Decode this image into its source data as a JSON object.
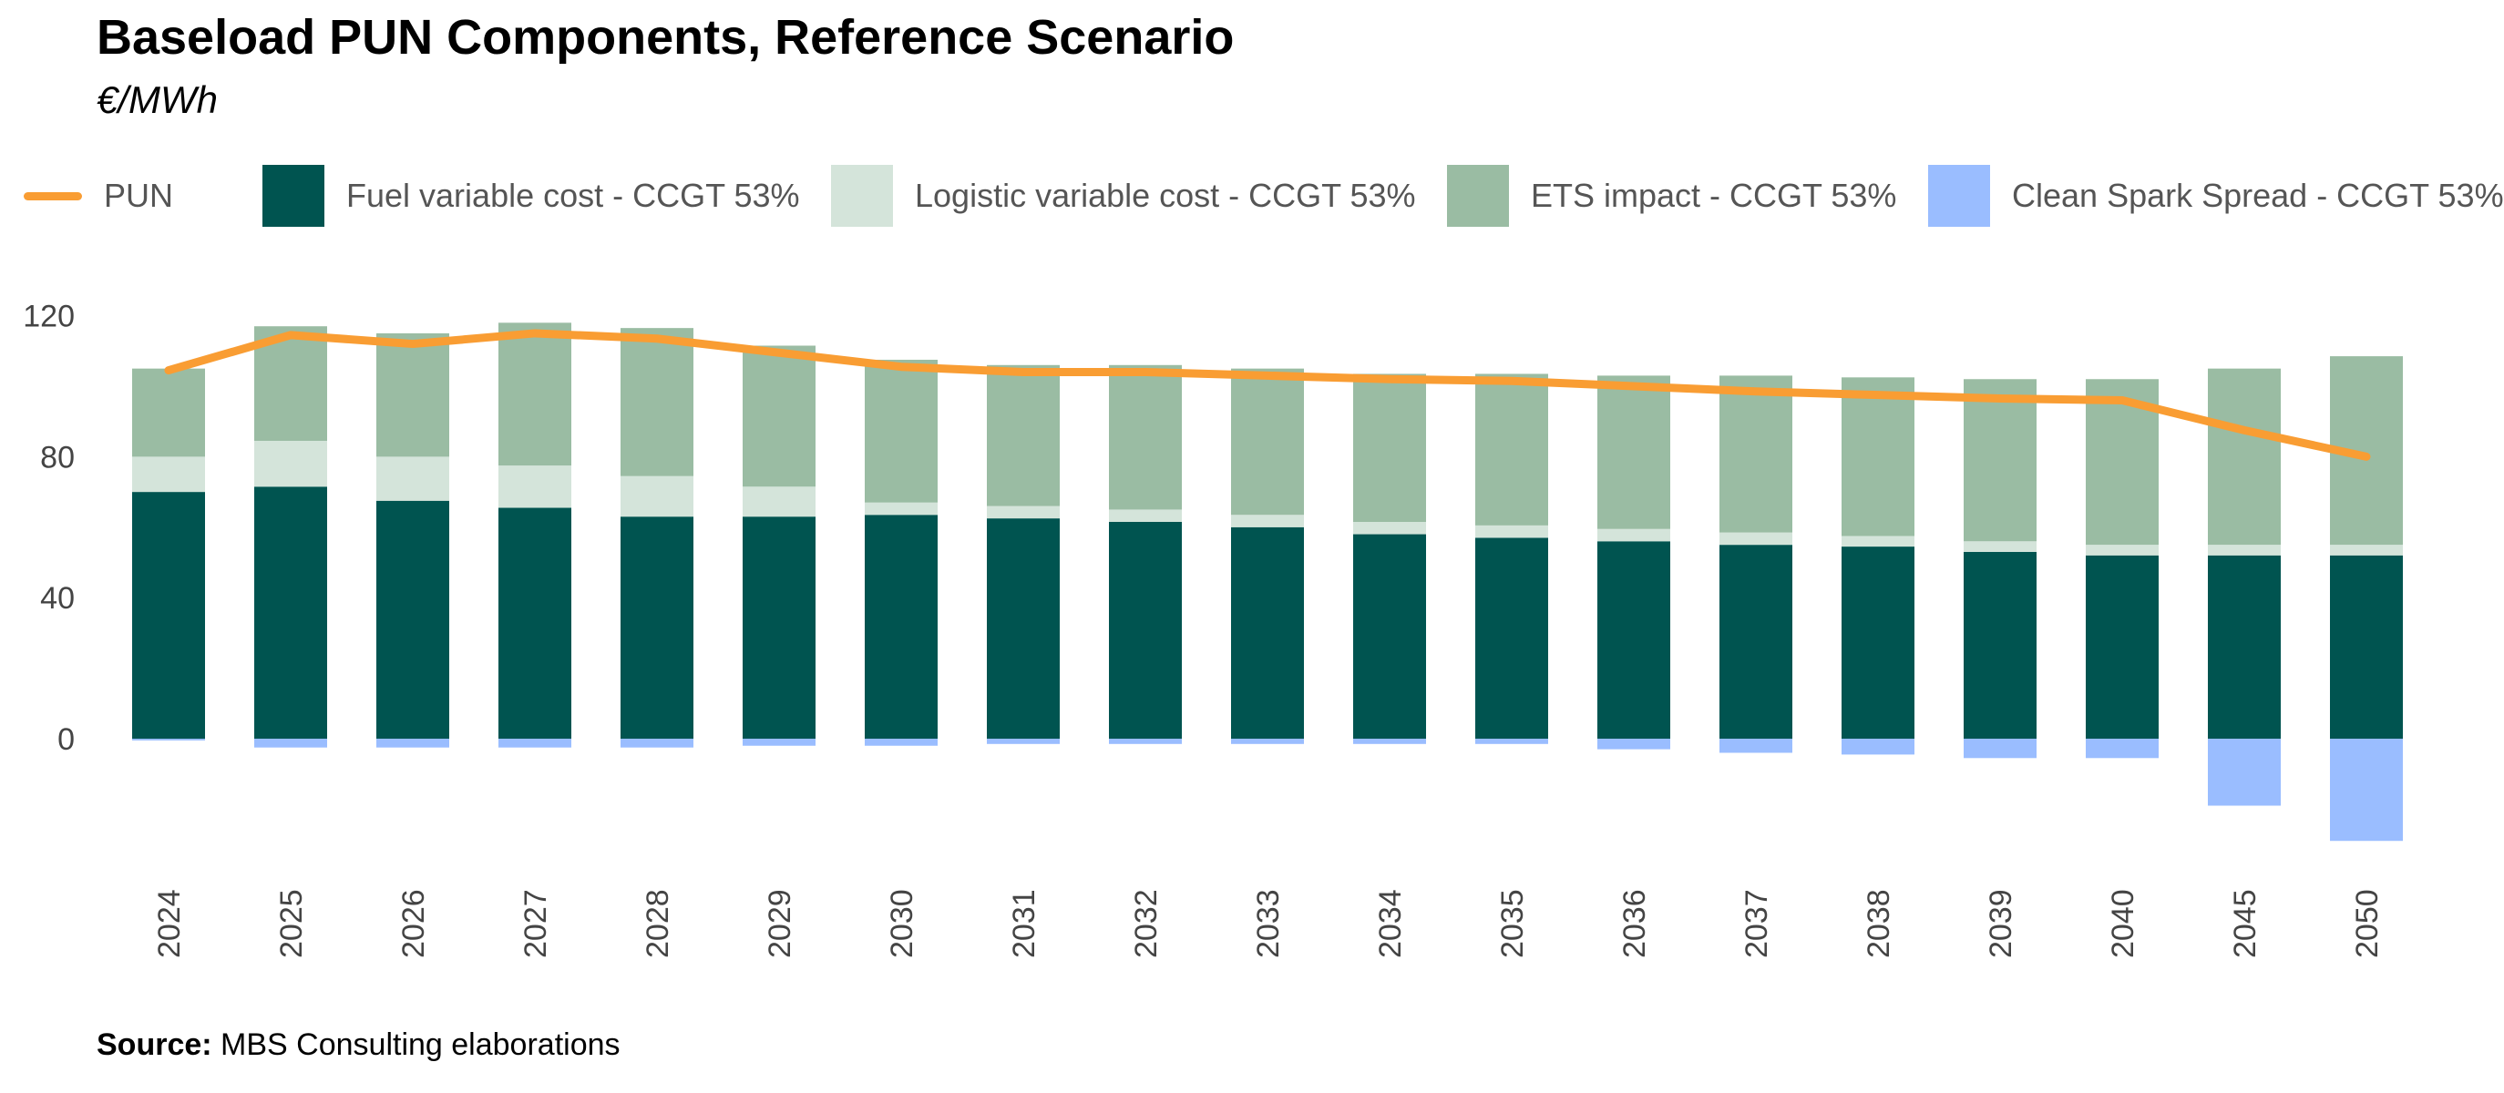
{
  "title": "Baseload PUN Components, Reference Scenario",
  "subtitle": "€/MWh",
  "source": {
    "label": "Source:",
    "text": "MBS Consulting elaborations"
  },
  "legend": [
    {
      "key": "pun",
      "label": "PUN",
      "kind": "line",
      "color": "#F99D33"
    },
    {
      "key": "fuel",
      "label": "Fuel variable cost - CCGT 53%",
      "kind": "bar",
      "color": "#005450"
    },
    {
      "key": "logistic",
      "label": "Logistic variable cost - CCGT 53%",
      "kind": "bar",
      "color": "#D4E4DA"
    },
    {
      "key": "ets",
      "label": "ETS impact - CCGT 53%",
      "kind": "bar",
      "color": "#9ABCA3"
    },
    {
      "key": "css",
      "label": "Clean Spark Spread - CCGT 53%",
      "kind": "bar",
      "color": "#9ABDFF"
    }
  ],
  "chart_data": {
    "type": "bar",
    "stacked": true,
    "categories": [
      "2024",
      "2025",
      "2026",
      "2027",
      "2028",
      "2029",
      "2030",
      "2031",
      "2032",
      "2033",
      "2034",
      "2035",
      "2036",
      "2037",
      "2038",
      "2039",
      "2040",
      "2045",
      "2050"
    ],
    "ylim": [
      -30,
      125
    ],
    "yticks": [
      0,
      40,
      80,
      120
    ],
    "grid": false,
    "legend_position": "top",
    "series": [
      {
        "key": "fuel",
        "name": "Fuel variable cost - CCGT 53%",
        "color": "#005450",
        "values": [
          70,
          71.5,
          67.5,
          65.5,
          63,
          63,
          63.5,
          62.5,
          61.5,
          60,
          58,
          57,
          56,
          55,
          54.5,
          53,
          52,
          52,
          52
        ]
      },
      {
        "key": "logistic",
        "name": "Logistic variable cost - CCGT 53%",
        "color": "#D4E4DA",
        "values": [
          10,
          13,
          12.5,
          12,
          11.5,
          8.5,
          3.5,
          3.5,
          3.5,
          3.5,
          3.5,
          3.5,
          3.5,
          3.5,
          3,
          3,
          3,
          3,
          3
        ]
      },
      {
        "key": "ets",
        "name": "ETS impact - CCGT 53%",
        "color": "#9ABCA3",
        "values": [
          25,
          32.5,
          35,
          40.5,
          42,
          40,
          40.5,
          40,
          41,
          41.5,
          42,
          43,
          43.5,
          44.5,
          45,
          46,
          47,
          50,
          53.5
        ]
      },
      {
        "key": "css",
        "name": "Clean Spark Spread - CCGT 53%",
        "color": "#9ABDFF",
        "values": [
          -0.5,
          -2.5,
          -2.5,
          -2.5,
          -2.5,
          -2,
          -2,
          -1.5,
          -1.5,
          -1.5,
          -1.5,
          -1.5,
          -3,
          -4,
          -4.5,
          -5.5,
          -5.5,
          -19,
          -29
        ]
      },
      {
        "key": "pun",
        "name": "PUN",
        "color": "#F99D33",
        "kind": "line",
        "values": [
          104.5,
          114.5,
          112,
          115,
          113.5,
          109.5,
          105.5,
          104,
          104,
          103,
          102,
          101.5,
          100,
          98.5,
          97.5,
          96.5,
          96,
          87.5,
          80
        ]
      }
    ]
  }
}
